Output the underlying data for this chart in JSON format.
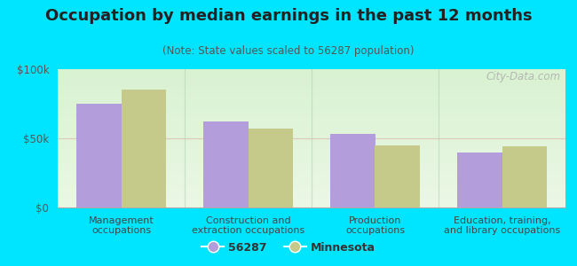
{
  "title": "Occupation by median earnings in the past 12 months",
  "subtitle": "(Note: State values scaled to 56287 population)",
  "categories": [
    "Management\noccupations",
    "Construction and\nextraction occupations",
    "Production\noccupations",
    "Education, training,\nand library occupations"
  ],
  "values_56287": [
    75000,
    62000,
    53000,
    40000
  ],
  "values_minnesota": [
    85000,
    57000,
    45000,
    44000
  ],
  "bar_color_56287": "#b39ddb",
  "bar_color_minnesota": "#c5c98a",
  "background_outer": "#00e5ff",
  "ylim": [
    0,
    100000
  ],
  "yticks": [
    0,
    50000,
    100000
  ],
  "ytick_labels": [
    "$0",
    "$50k",
    "$100k"
  ],
  "legend_label_56287": "56287",
  "legend_label_minnesota": "Minnesota",
  "watermark": "City-Data.com",
  "title_fontsize": 13,
  "subtitle_fontsize": 8.5,
  "tick_fontsize": 8.5,
  "xlabel_fontsize": 8,
  "legend_fontsize": 9
}
